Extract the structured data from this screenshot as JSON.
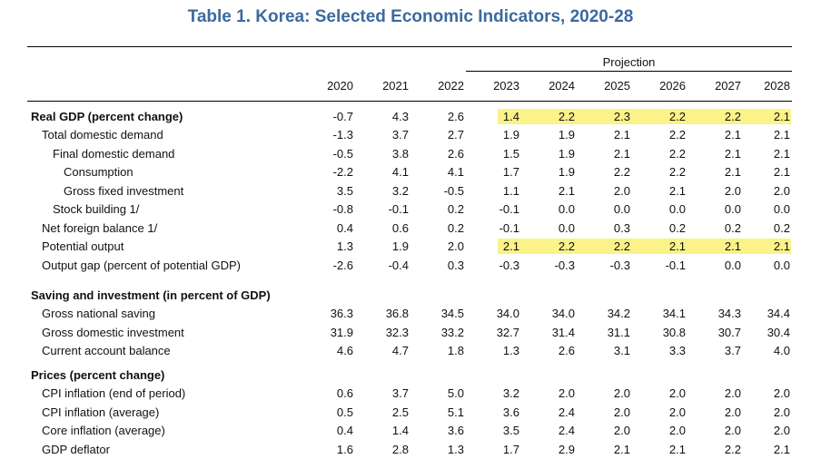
{
  "title": "Table 1. Korea: Selected Economic Indicators, 2020-28",
  "projection_label": "Projection",
  "years": [
    "2020",
    "2021",
    "2022",
    "2023",
    "2024",
    "2025",
    "2026",
    "2027",
    "2028"
  ],
  "highlight_color": "#fbf28a",
  "title_color": "#3b6a9e",
  "rows": [
    {
      "label": "Real GDP (percent change)",
      "indent": 0,
      "bold": true,
      "highlight": true,
      "values": [
        "-0.7",
        "4.3",
        "2.6",
        "1.4",
        "2.2",
        "2.3",
        "2.2",
        "2.2",
        "2.1"
      ]
    },
    {
      "label": "Total domestic demand",
      "indent": 1,
      "bold": false,
      "highlight": false,
      "values": [
        "-1.3",
        "3.7",
        "2.7",
        "1.9",
        "1.9",
        "2.1",
        "2.2",
        "2.1",
        "2.1"
      ]
    },
    {
      "label": "Final domestic demand",
      "indent": 2,
      "bold": false,
      "highlight": false,
      "values": [
        "-0.5",
        "3.8",
        "2.6",
        "1.5",
        "1.9",
        "2.1",
        "2.2",
        "2.1",
        "2.1"
      ]
    },
    {
      "label": "Consumption",
      "indent": 3,
      "bold": false,
      "highlight": false,
      "values": [
        "-2.2",
        "4.1",
        "4.1",
        "1.7",
        "1.9",
        "2.2",
        "2.2",
        "2.1",
        "2.1"
      ]
    },
    {
      "label": "Gross fixed investment",
      "indent": 3,
      "bold": false,
      "highlight": false,
      "values": [
        "3.5",
        "3.2",
        "-0.5",
        "1.1",
        "2.1",
        "2.0",
        "2.1",
        "2.0",
        "2.0"
      ]
    },
    {
      "label": "Stock building 1/",
      "indent": 2,
      "bold": false,
      "highlight": false,
      "values": [
        "-0.8",
        "-0.1",
        "0.2",
        "-0.1",
        "0.0",
        "0.0",
        "0.0",
        "0.0",
        "0.0"
      ]
    },
    {
      "label": "Net foreign balance 1/",
      "indent": 1,
      "bold": false,
      "highlight": false,
      "values": [
        "0.4",
        "0.6",
        "0.2",
        "-0.1",
        "0.0",
        "0.3",
        "0.2",
        "0.2",
        "0.2"
      ]
    },
    {
      "label": "Potential output",
      "indent": 1,
      "bold": false,
      "highlight": true,
      "values": [
        "1.3",
        "1.9",
        "2.0",
        "2.1",
        "2.2",
        "2.2",
        "2.1",
        "2.1",
        "2.1"
      ]
    },
    {
      "label": "Output gap (percent of potential GDP)",
      "indent": 1,
      "bold": false,
      "highlight": false,
      "values": [
        "-2.6",
        "-0.4",
        "0.3",
        "-0.3",
        "-0.3",
        "-0.3",
        "-0.1",
        "0.0",
        "0.0"
      ]
    },
    {
      "label": "Saving and investment (in percent of GDP)",
      "indent": 0,
      "bold": true,
      "highlight": false,
      "values": []
    },
    {
      "label": "Gross national saving",
      "indent": 1,
      "bold": false,
      "highlight": false,
      "values": [
        "36.3",
        "36.8",
        "34.5",
        "34.0",
        "34.0",
        "34.2",
        "34.1",
        "34.3",
        "34.4"
      ]
    },
    {
      "label": "Gross domestic investment",
      "indent": 1,
      "bold": false,
      "highlight": false,
      "values": [
        "31.9",
        "32.3",
        "33.2",
        "32.7",
        "31.4",
        "31.1",
        "30.8",
        "30.7",
        "30.4"
      ]
    },
    {
      "label": "Current account balance",
      "indent": 1,
      "bold": false,
      "highlight": false,
      "values": [
        "4.6",
        "4.7",
        "1.8",
        "1.3",
        "2.6",
        "3.1",
        "3.3",
        "3.7",
        "4.0"
      ]
    },
    {
      "label": "Prices (percent change)",
      "indent": 0,
      "bold": true,
      "highlight": false,
      "values": []
    },
    {
      "label": "CPI inflation (end of period)",
      "indent": 1,
      "bold": false,
      "highlight": false,
      "values": [
        "0.6",
        "3.7",
        "5.0",
        "3.2",
        "2.0",
        "2.0",
        "2.0",
        "2.0",
        "2.0"
      ]
    },
    {
      "label": "CPI inflation (average)",
      "indent": 1,
      "bold": false,
      "highlight": false,
      "values": [
        "0.5",
        "2.5",
        "5.1",
        "3.6",
        "2.4",
        "2.0",
        "2.0",
        "2.0",
        "2.0"
      ]
    },
    {
      "label": "Core inflation (average)",
      "indent": 1,
      "bold": false,
      "highlight": false,
      "values": [
        "0.4",
        "1.4",
        "3.6",
        "3.5",
        "2.4",
        "2.0",
        "2.0",
        "2.0",
        "2.0"
      ]
    },
    {
      "label": "GDP deflator",
      "indent": 1,
      "bold": false,
      "highlight": false,
      "values": [
        "1.6",
        "2.8",
        "1.3",
        "1.7",
        "2.9",
        "2.1",
        "2.1",
        "2.2",
        "2.1"
      ]
    }
  ]
}
